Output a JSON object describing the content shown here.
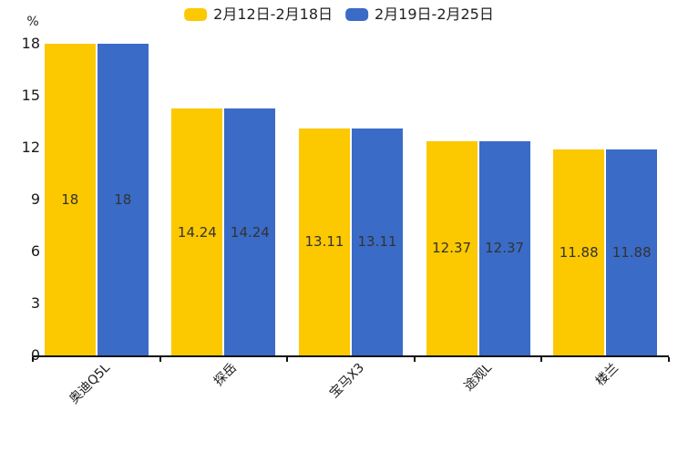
{
  "chart_data": {
    "type": "bar",
    "title": "",
    "categories": [
      "奥迪Q5L",
      "探岳",
      "宝马X3",
      "途观L",
      "楼兰"
    ],
    "series": [
      {
        "name": "2月12日-2月18日",
        "color": "#FCC800",
        "values": [
          18,
          14.24,
          13.11,
          12.37,
          11.88
        ]
      },
      {
        "name": "2月19日-2月25日",
        "color": "#3A6BC7",
        "values": [
          18,
          14.24,
          13.11,
          12.37,
          11.88
        ]
      }
    ],
    "value_labels": [
      [
        "18",
        "14.24",
        "13.11",
        "12.37",
        "11.88"
      ],
      [
        "18",
        "14.24",
        "13.11",
        "12.37",
        "11.88"
      ]
    ],
    "xlabel": "",
    "ylabel": "%",
    "yticks": [
      0,
      3,
      6,
      9,
      12,
      15,
      18
    ],
    "ylim": [
      0,
      18
    ],
    "grid": false,
    "legend_position": "top",
    "bar_label_color": "#333333",
    "axis_color": "#111111"
  }
}
